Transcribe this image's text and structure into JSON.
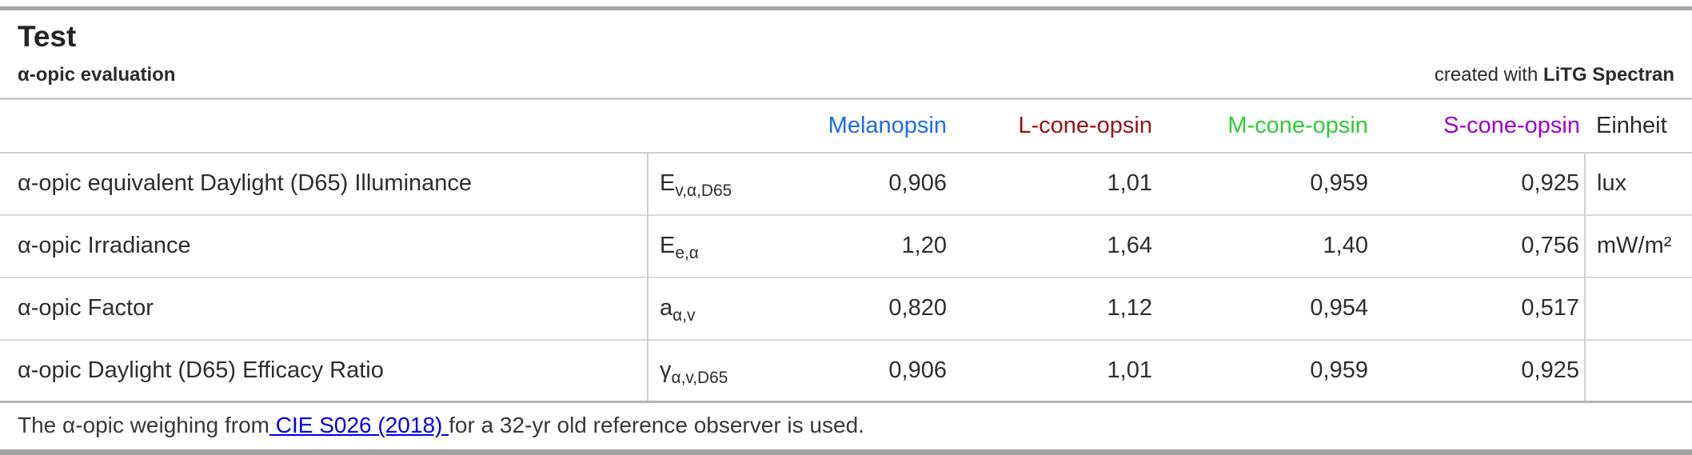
{
  "header": {
    "title": "Test",
    "subtitle": "α-opic evaluation",
    "credit_prefix": "created with ",
    "credit_app": "LiTG Spectran"
  },
  "colors": {
    "melanopsin": "#1e6be6",
    "l_cone": "#9a1212",
    "m_cone": "#2fcc35",
    "s_cone": "#9d00d0",
    "einheit_text": "#2b2b2b",
    "link": "#0000ee",
    "row_divider": "#dcdcdc",
    "page_border": "#a2a2a2"
  },
  "table": {
    "columns": [
      "Melanopsin",
      "L-cone-opsin",
      "M-cone-opsin",
      "S-cone-opsin",
      "Einheit"
    ],
    "rows": [
      {
        "label": "α-opic equivalent Daylight (D65) Illuminance",
        "symbol_base": "E",
        "symbol_sub": "v,α,D65",
        "values": [
          "0,906",
          "1,01",
          "0,959",
          "0,925"
        ],
        "unit": "lux"
      },
      {
        "label": "α-opic Irradiance",
        "symbol_base": "E",
        "symbol_sub": "e,α",
        "values": [
          "1,20",
          "1,64",
          "1,40",
          "0,756"
        ],
        "unit": "mW/m²"
      },
      {
        "label": "α-opic Factor",
        "symbol_base": "a",
        "symbol_sub": "α,v",
        "values": [
          "0,820",
          "1,12",
          "0,954",
          "0,517"
        ],
        "unit": ""
      },
      {
        "label": "α-opic Daylight (D65) Efficacy Ratio",
        "symbol_base": "γ",
        "symbol_sub": "α,v,D65",
        "values": [
          "0,906",
          "1,01",
          "0,959",
          "0,925"
        ],
        "unit": ""
      }
    ]
  },
  "footer": {
    "text_before": "The α-opic weighing from",
    "link_text": " CIE S026 (2018) ",
    "text_after": "for a 32-yr old reference observer is used."
  }
}
